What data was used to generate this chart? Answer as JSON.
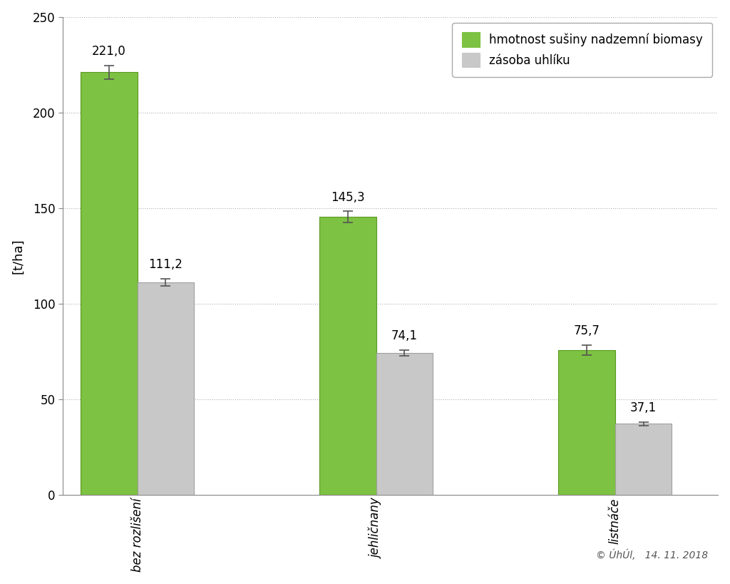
{
  "categories": [
    "bez rozlišení",
    "jehličnany",
    "listnáče"
  ],
  "green_values": [
    221.0,
    145.3,
    75.7
  ],
  "gray_values": [
    111.2,
    74.1,
    37.1
  ],
  "green_errors": [
    3.5,
    3.0,
    2.5
  ],
  "gray_errors": [
    1.8,
    1.5,
    1.0
  ],
  "green_color": "#7dc242",
  "gray_color": "#c8c8c8",
  "green_edge_color": "#5a9a20",
  "gray_edge_color": "#a0a0a0",
  "error_color": "#555555",
  "ylabel": "[t/ha]",
  "ylim": [
    0,
    250
  ],
  "yticks": [
    0,
    50,
    100,
    150,
    200,
    250
  ],
  "legend_green": "hmotnost sušiny nadzemní biomasy",
  "legend_gray": "zásoba uhlíku",
  "copyright_text": "© ÚhÚl,   14. 11. 2018",
  "background_color": "#ffffff",
  "grid_color": "#b0b0b0",
  "bar_width": 0.38,
  "label_fontsize": 12,
  "tick_fontsize": 12,
  "ylabel_fontsize": 13,
  "legend_fontsize": 12,
  "value_label_fontsize": 12
}
